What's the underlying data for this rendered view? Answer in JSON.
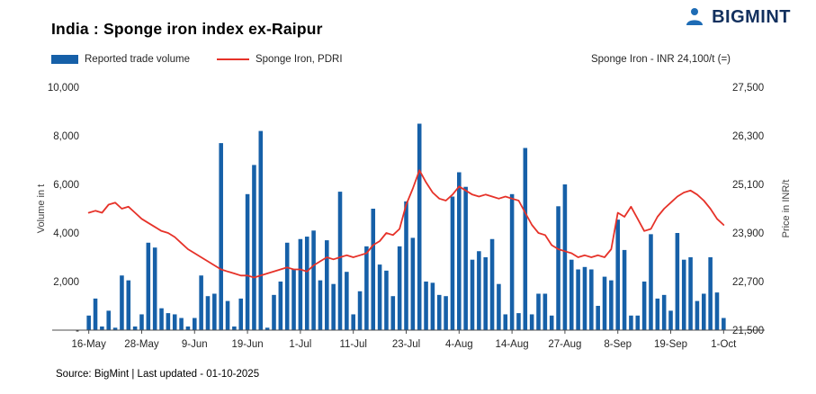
{
  "brand": {
    "name": "BIGMINT"
  },
  "title": "India : Sponge iron index ex-Raipur",
  "legend": {
    "volume": "Reported trade volume",
    "price": "Sponge Iron, PDRI"
  },
  "annotation": "Sponge Iron - INR 24,100/t (=)",
  "axes": {
    "left_title": "Volume in t",
    "right_title": "Price in INR/t"
  },
  "source": "Source: BigMint | Last updated - 01-10-2025",
  "colors": {
    "bar": "#1660a8",
    "line": "#e63229",
    "brand_navy": "#12305e",
    "brand_blue": "#1e6cb5",
    "axis_text": "#262626",
    "axis_line": "#4d4d4d"
  },
  "chart_data": {
    "type": "bar+line",
    "title": "India : Sponge iron index ex-Raipur",
    "x_tick_labels": [
      "16-May",
      "28-May",
      "9-Jun",
      "19-Jun",
      "1-Jul",
      "11-Jul",
      "23-Jul",
      "4-Aug",
      "14-Aug",
      "27-Aug",
      "8-Sep",
      "19-Sep",
      "1-Oct"
    ],
    "x_tick_positions": [
      0,
      8,
      16,
      24,
      32,
      40,
      48,
      56,
      64,
      72,
      80,
      88,
      96
    ],
    "left_axis": {
      "title": "Volume in t",
      "range": [
        0,
        10000
      ],
      "ticks": [
        10000,
        8000,
        6000,
        4000,
        2000,
        0
      ],
      "labels": [
        "10,000",
        "8,000",
        "6,000",
        "4,000",
        "2,000",
        "-"
      ]
    },
    "right_axis": {
      "title": "Price in INR/t",
      "range": [
        21500,
        27500
      ],
      "ticks": [
        27500,
        26300,
        25100,
        23900,
        22700,
        21500
      ],
      "labels": [
        "27,500",
        "26,300",
        "25,100",
        "23,900",
        "22,700",
        "21,500"
      ]
    },
    "series": [
      {
        "name": "Reported trade volume",
        "type": "bar",
        "axis": "left",
        "values": [
          600,
          1300,
          150,
          800,
          100,
          2250,
          2050,
          150,
          650,
          3600,
          3400,
          900,
          700,
          650,
          500,
          150,
          500,
          2250,
          1400,
          1500,
          7700,
          1200,
          150,
          1300,
          5600,
          6800,
          8200,
          100,
          1450,
          2000,
          3600,
          2500,
          3750,
          3850,
          4100,
          2050,
          3700,
          1900,
          5700,
          2400,
          650,
          1600,
          3450,
          5000,
          2700,
          2450,
          1400,
          3450,
          5300,
          3800,
          8500,
          2000,
          1950,
          1450,
          1400,
          5500,
          6500,
          5900,
          2900,
          3250,
          3000,
          3750,
          1900,
          650,
          5600,
          700,
          7500,
          650,
          1500,
          1500,
          600,
          5100,
          6000,
          2900,
          2500,
          2600,
          2500,
          1000,
          2200,
          2050,
          4550,
          3300,
          600,
          600,
          2000,
          3950,
          1300,
          1450,
          800,
          4000,
          2900,
          3000,
          1200,
          1500,
          3000,
          1550,
          500
        ]
      },
      {
        "name": "Sponge Iron, PDRI",
        "type": "line",
        "axis": "right",
        "values": [
          24400,
          24450,
          24400,
          24600,
          24650,
          24500,
          24550,
          24400,
          24250,
          24150,
          24050,
          23950,
          23900,
          23800,
          23650,
          23500,
          23400,
          23300,
          23200,
          23100,
          23000,
          22950,
          22900,
          22850,
          22850,
          22800,
          22850,
          22900,
          22950,
          23000,
          23050,
          23000,
          23000,
          22950,
          23100,
          23200,
          23300,
          23250,
          23300,
          23350,
          23300,
          23350,
          23400,
          23600,
          23700,
          23900,
          23850,
          24000,
          24600,
          25000,
          25450,
          25150,
          24900,
          24750,
          24700,
          24850,
          25050,
          24950,
          24850,
          24800,
          24850,
          24800,
          24750,
          24800,
          24750,
          24700,
          24400,
          24100,
          23900,
          23850,
          23600,
          23500,
          23450,
          23400,
          23300,
          23350,
          23300,
          23350,
          23300,
          23500,
          24400,
          24300,
          24550,
          24250,
          23950,
          24000,
          24300,
          24500,
          24650,
          24800,
          24900,
          24950,
          24850,
          24700,
          24500,
          24250,
          24100
        ]
      }
    ],
    "legend_position": "top-left",
    "grid": false
  }
}
